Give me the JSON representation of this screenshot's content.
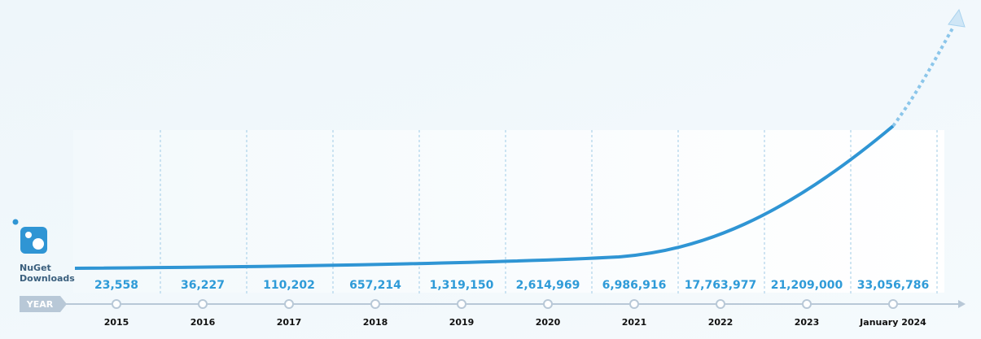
{
  "logo_label": [
    "NuGet",
    "Downloads"
  ],
  "axis_label": "YEAR",
  "points": [
    {
      "year": "2015",
      "downloads": "23,558"
    },
    {
      "year": "2016",
      "downloads": "36,227"
    },
    {
      "year": "2017",
      "downloads": "110,202"
    },
    {
      "year": "2018",
      "downloads": "657,214"
    },
    {
      "year": "2019",
      "downloads": "1,319,150"
    },
    {
      "year": "2020",
      "downloads": "2,614,969"
    },
    {
      "year": "2021",
      "downloads": "6,986,916"
    },
    {
      "year": "2022",
      "downloads": "17,763,977"
    },
    {
      "year": "2023",
      "downloads": "21,209,000"
    },
    {
      "year": "January 2024",
      "downloads": "33,056,786"
    }
  ]
}
